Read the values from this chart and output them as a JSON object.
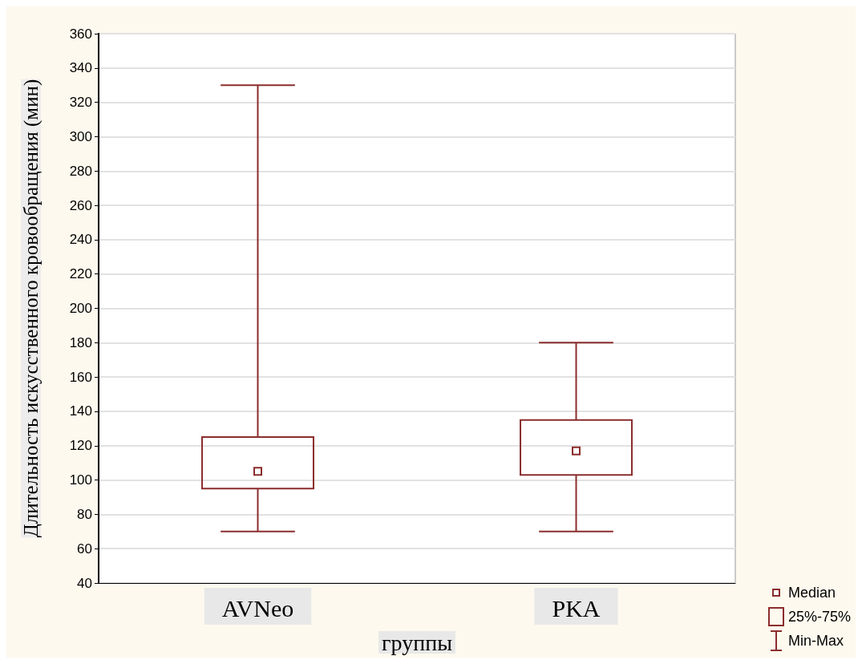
{
  "chart_data": {
    "type": "box",
    "xlabel": "группы",
    "ylabel": "Длительность искусственного кровообращения (мин)",
    "categories": [
      "AVNeo",
      "PKA"
    ],
    "boxes": [
      {
        "low": 70,
        "q1": 95,
        "median": 105,
        "q3": 125,
        "high": 330
      },
      {
        "low": 70,
        "q1": 103,
        "median": 117,
        "q3": 135,
        "high": 180
      }
    ],
    "color": "#8b2d2d",
    "ylim": [
      40,
      360
    ],
    "yticks": [
      40,
      60,
      80,
      100,
      120,
      140,
      160,
      180,
      200,
      220,
      240,
      260,
      280,
      300,
      320,
      340,
      360
    ],
    "grid": "y",
    "annotations": [
      "Median",
      "25%-75%",
      "Min-Max"
    ]
  }
}
